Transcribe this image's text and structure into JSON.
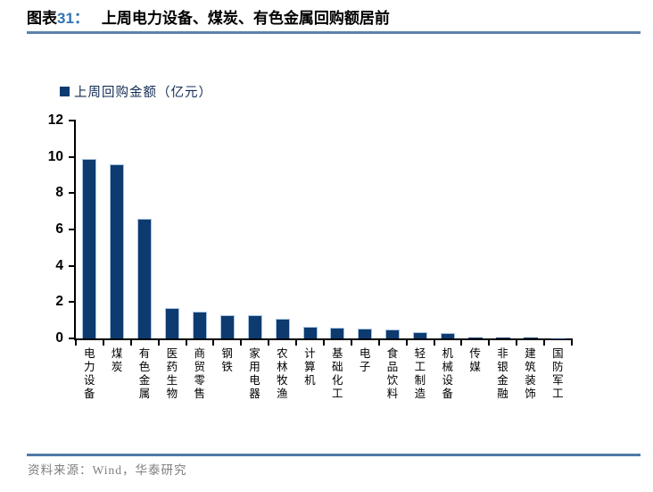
{
  "header": {
    "figure_label": "图表",
    "figure_number": "31：",
    "title": "上周电力设备、煤炭、有色金属回购额居前"
  },
  "legend": {
    "label": "上周回购金额（亿元）",
    "swatch_color": "#0d3b70"
  },
  "chart_data": {
    "type": "bar",
    "title": "上周电力设备、煤炭、有色金属回购额居前",
    "legend": [
      "上周回购金额（亿元）"
    ],
    "categories": [
      "电力设备",
      "煤炭",
      "有色金属",
      "医药生物",
      "商贸零售",
      "钢铁",
      "家用电器",
      "农林牧渔",
      "计算机",
      "基础化工",
      "电子",
      "食品饮料",
      "轻工制造",
      "机械设备",
      "传媒",
      "非银金融",
      "建筑装饰",
      "国防军工"
    ],
    "values": [
      9.9,
      9.6,
      6.6,
      1.65,
      1.5,
      1.3,
      1.3,
      1.1,
      0.62,
      0.6,
      0.55,
      0.5,
      0.35,
      0.3,
      0.07,
      0.07,
      0.05,
      0.01
    ],
    "xlabel": "",
    "ylabel": "",
    "ylim": [
      0,
      12
    ],
    "yticks": [
      0,
      2,
      4,
      6,
      8,
      10,
      12
    ],
    "grid": false,
    "legend_position": "top-left",
    "bar_color": "#0d3b70",
    "bar_edge_color": "#a9c3e2"
  },
  "footer": {
    "source": "资料来源：Wind，华泰研究"
  },
  "colors": {
    "bar": "#0d3b70",
    "bar_edge": "#a9c3e2",
    "rule_top": "#5d82ab",
    "rule_bottom": "#4f7aa8",
    "figure_number_blue": "#2e74b5",
    "source_gray": "#7f7f7f"
  }
}
